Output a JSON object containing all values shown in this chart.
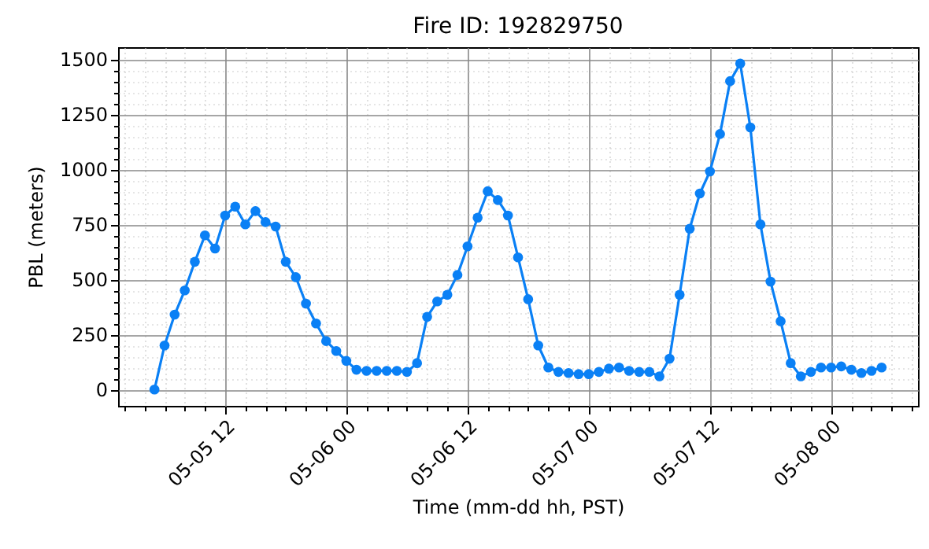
{
  "chart_data": {
    "type": "line",
    "title": "Fire ID: 192829750",
    "xlabel": "Time (mm-dd hh, PST)",
    "ylabel": "PBL (meters)",
    "x": [
      "--05-05T05:00",
      "--05-05T06:00",
      "--05-05T07:00",
      "--05-05T08:00",
      "--05-05T09:00",
      "--05-05T10:00",
      "--05-05T11:00",
      "--05-05T12:00",
      "--05-05T13:00",
      "--05-05T14:00",
      "--05-05T15:00",
      "--05-05T16:00",
      "--05-05T17:00",
      "--05-05T18:00",
      "--05-05T19:00",
      "--05-05T20:00",
      "--05-05T21:00",
      "--05-05T22:00",
      "--05-05T23:00",
      "--05-06T00:00",
      "--05-06T01:00",
      "--05-06T02:00",
      "--05-06T03:00",
      "--05-06T04:00",
      "--05-06T05:00",
      "--05-06T06:00",
      "--05-06T07:00",
      "--05-06T08:00",
      "--05-06T09:00",
      "--05-06T10:00",
      "--05-06T11:00",
      "--05-06T12:00",
      "--05-06T13:00",
      "--05-06T14:00",
      "--05-06T15:00",
      "--05-06T16:00",
      "--05-06T17:00",
      "--05-06T18:00",
      "--05-06T19:00",
      "--05-06T20:00",
      "--05-06T21:00",
      "--05-06T22:00",
      "--05-06T23:00",
      "--05-07T00:00",
      "--05-07T01:00",
      "--05-07T02:00",
      "--05-07T03:00",
      "--05-07T04:00",
      "--05-07T05:00",
      "--05-07T06:00",
      "--05-07T07:00",
      "--05-07T08:00",
      "--05-07T09:00",
      "--05-07T10:00",
      "--05-07T11:00",
      "--05-07T12:00",
      "--05-07T13:00",
      "--05-07T14:00",
      "--05-07T15:00",
      "--05-07T16:00",
      "--05-07T17:00",
      "--05-07T18:00",
      "--05-07T19:00",
      "--05-07T20:00",
      "--05-07T21:00",
      "--05-07T22:00",
      "--05-07T23:00",
      "--05-08T00:00",
      "--05-08T01:00",
      "--05-08T02:00",
      "--05-08T03:00",
      "--05-08T04:00",
      "--05-08T05:00"
    ],
    "series": [
      {
        "color": "#0a80f5",
        "values": [
          0,
          200,
          340,
          450,
          580,
          700,
          640,
          790,
          830,
          750,
          810,
          760,
          740,
          580,
          510,
          390,
          300,
          220,
          175,
          130,
          90,
          85,
          85,
          85,
          85,
          80,
          120,
          330,
          400,
          430,
          520,
          650,
          780,
          900,
          860,
          790,
          600,
          410,
          200,
          100,
          80,
          75,
          70,
          70,
          80,
          95,
          100,
          85,
          80,
          80,
          60,
          140,
          430,
          730,
          890,
          990,
          1160,
          1400,
          1480,
          1190,
          750,
          490,
          310,
          120,
          60,
          80,
          100,
          100,
          105,
          90,
          75,
          85,
          100
        ]
      }
    ],
    "xlim": [
      "--05-05T01:24",
      "--05-08T08:36"
    ],
    "xticks": [
      {
        "value": "--05-05T02:00",
        "label": null
      },
      {
        "value": "--05-05T04:00",
        "label": null
      },
      {
        "value": "--05-05T06:00",
        "label": null
      },
      {
        "value": "--05-05T08:00",
        "label": null
      },
      {
        "value": "--05-05T10:00",
        "label": null
      },
      {
        "value": "--05-05T12:00",
        "label": "05-05 12"
      },
      {
        "value": "--05-05T14:00",
        "label": null
      },
      {
        "value": "--05-05T16:00",
        "label": null
      },
      {
        "value": "--05-05T18:00",
        "label": null
      },
      {
        "value": "--05-05T20:00",
        "label": null
      },
      {
        "value": "--05-05T22:00",
        "label": null
      },
      {
        "value": "--05-06T00:00",
        "label": "05-06 00"
      },
      {
        "value": "--05-06T02:00",
        "label": null
      },
      {
        "value": "--05-06T04:00",
        "label": null
      },
      {
        "value": "--05-06T06:00",
        "label": null
      },
      {
        "value": "--05-06T08:00",
        "label": null
      },
      {
        "value": "--05-06T10:00",
        "label": null
      },
      {
        "value": "--05-06T12:00",
        "label": "05-06 12"
      },
      {
        "value": "--05-06T14:00",
        "label": null
      },
      {
        "value": "--05-06T16:00",
        "label": null
      },
      {
        "value": "--05-06T18:00",
        "label": null
      },
      {
        "value": "--05-06T20:00",
        "label": null
      },
      {
        "value": "--05-06T22:00",
        "label": null
      },
      {
        "value": "--05-07T00:00",
        "label": "05-07 00"
      },
      {
        "value": "--05-07T02:00",
        "label": null
      },
      {
        "value": "--05-07T04:00",
        "label": null
      },
      {
        "value": "--05-07T06:00",
        "label": null
      },
      {
        "value": "--05-07T08:00",
        "label": null
      },
      {
        "value": "--05-07T10:00",
        "label": null
      },
      {
        "value": "--05-07T12:00",
        "label": "05-07 12"
      },
      {
        "value": "--05-07T14:00",
        "label": null
      },
      {
        "value": "--05-07T16:00",
        "label": null
      },
      {
        "value": "--05-07T18:00",
        "label": null
      },
      {
        "value": "--05-07T20:00",
        "label": null
      },
      {
        "value": "--05-07T22:00",
        "label": null
      },
      {
        "value": "--05-08T00:00",
        "label": "05-08 00"
      },
      {
        "value": "--05-08T02:00",
        "label": null
      },
      {
        "value": "--05-08T04:00",
        "label": null
      },
      {
        "value": "--05-08T06:00",
        "label": null
      },
      {
        "value": "--05-08T08:00",
        "label": null
      }
    ],
    "ylim": [
      -74,
      1554
    ],
    "yticks": [
      0,
      {
        "value": 50,
        "label": null
      },
      {
        "value": 100,
        "label": null
      },
      {
        "value": 150,
        "label": null
      },
      {
        "value": 200,
        "label": null
      },
      250,
      {
        "value": 300,
        "label": null
      },
      {
        "value": 350,
        "label": null
      },
      {
        "value": 400,
        "label": null
      },
      {
        "value": 450,
        "label": null
      },
      500,
      {
        "value": 550,
        "label": null
      },
      {
        "value": 600,
        "label": null
      },
      {
        "value": 650,
        "label": null
      },
      {
        "value": 700,
        "label": null
      },
      750,
      {
        "value": 800,
        "label": null
      },
      {
        "value": 850,
        "label": null
      },
      {
        "value": 900,
        "label": null
      },
      {
        "value": 950,
        "label": null
      },
      1000,
      {
        "value": 1050,
        "label": null
      },
      {
        "value": 1100,
        "label": null
      },
      {
        "value": 1150,
        "label": null
      },
      {
        "value": 1200,
        "label": null
      },
      1250,
      {
        "value": 1300,
        "label": null
      },
      {
        "value": 1350,
        "label": null
      },
      {
        "value": 1400,
        "label": null
      },
      {
        "value": 1450,
        "label": null
      },
      1500
    ],
    "grid": true,
    "marker": "circle",
    "line_style": "solid"
  }
}
